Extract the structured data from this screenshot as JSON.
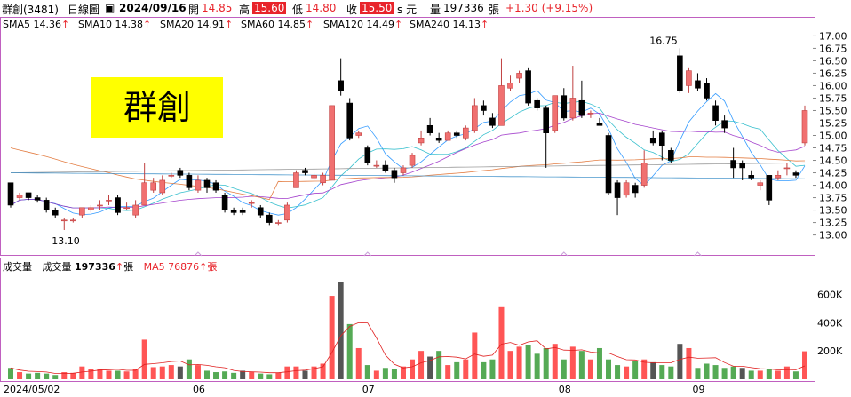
{
  "header": {
    "stock": "群創(3481)",
    "period": "日線圖",
    "date": "2024/09/16",
    "open_label": "開",
    "open": "14.85",
    "high_label": "高",
    "high": "15.60",
    "low_label": "低",
    "low": "14.80",
    "close_label": "收",
    "close": "15.50",
    "close_unit": "s 元",
    "volume_label": "量",
    "volume": "197336",
    "volume_unit": "張",
    "change": "+1.30 (+9.15%)"
  },
  "ma_legend": [
    {
      "text": "SMA5 14.36",
      "arrow": "↑",
      "color": "#1e90ff"
    },
    {
      "text": "SMA10 14.38",
      "arrow": "↑",
      "color": "#20b8c8"
    },
    {
      "text": "SMA20 14.91",
      "arrow": "↑",
      "color": "#9b30c8"
    },
    {
      "text": "SMA60 14.85",
      "arrow": "↑",
      "color": "#e07030"
    },
    {
      "text": "SMA120 14.49",
      "arrow": "↑",
      "color": "#909090"
    },
    {
      "text": "SMA240 14.13",
      "arrow": "↑",
      "color": "#3a8ec8"
    }
  ],
  "stock_name_box": "群創",
  "volume_legend": {
    "title": "成交量",
    "vol_label": "成交量",
    "vol_value": "197336",
    "vol_arrow": "↑",
    "vol_unit": "張",
    "ma5_label": "MA5",
    "ma5_value": "76876",
    "ma5_arrow": "↑",
    "ma5_unit": "張"
  },
  "chart_data": {
    "type": "candlestick",
    "price_axis": {
      "ticks": [
        "17.00",
        "16.75",
        "16.50",
        "16.25",
        "16.00",
        "15.75",
        "15.50",
        "15.25",
        "15.00",
        "14.75",
        "14.50",
        "14.25",
        "14.00",
        "13.75",
        "13.50",
        "13.25",
        "13.00"
      ],
      "ylim": [
        12.85,
        17.15
      ]
    },
    "volume_axis": {
      "ticks": [
        "600K",
        "400K",
        "200K"
      ],
      "ylim": [
        0,
        760000
      ]
    },
    "x_labels": [
      {
        "label": "2024/05/02",
        "index": 0
      },
      {
        "label": "06",
        "index": 21
      },
      {
        "label": "07",
        "index": 40
      },
      {
        "label": "08",
        "index": 62
      },
      {
        "label": "09",
        "index": 77
      }
    ],
    "annotations": [
      {
        "text": "16.75",
        "index": 73,
        "value": 16.75,
        "position": "above"
      },
      {
        "text": "13.10",
        "index": 6,
        "value": 13.1,
        "position": "below"
      }
    ],
    "candles": [
      [
        14.05,
        13.6,
        14.05,
        13.55
      ],
      [
        13.75,
        13.8,
        13.85,
        13.7
      ],
      [
        13.85,
        13.75,
        13.85,
        13.7
      ],
      [
        13.75,
        13.7,
        13.8,
        13.65
      ],
      [
        13.7,
        13.5,
        13.75,
        13.45
      ],
      [
        13.5,
        13.4,
        13.55,
        13.35
      ],
      [
        13.3,
        13.3,
        13.35,
        13.1
      ],
      [
        13.3,
        13.3,
        13.35,
        13.25
      ],
      [
        13.4,
        13.55,
        13.55,
        13.35
      ],
      [
        13.5,
        13.55,
        13.6,
        13.45
      ],
      [
        13.6,
        13.6,
        13.7,
        13.5
      ],
      [
        13.7,
        13.7,
        13.8,
        13.6
      ],
      [
        13.75,
        13.45,
        13.8,
        13.4
      ],
      [
        13.55,
        13.55,
        13.65,
        13.5
      ],
      [
        13.4,
        13.6,
        13.7,
        13.35
      ],
      [
        13.6,
        14.05,
        14.45,
        13.6
      ],
      [
        13.9,
        14.05,
        14.15,
        13.85
      ],
      [
        13.85,
        14.1,
        14.2,
        13.8
      ],
      [
        14.2,
        14.2,
        14.25,
        14.15
      ],
      [
        14.3,
        14.2,
        14.35,
        14.15
      ],
      [
        14.2,
        13.95,
        14.25,
        13.9
      ],
      [
        13.9,
        14.1,
        14.2,
        13.85
      ],
      [
        14.1,
        13.95,
        14.15,
        13.85
      ],
      [
        14.05,
        13.9,
        14.1,
        13.85
      ],
      [
        13.8,
        13.5,
        13.85,
        13.45
      ],
      [
        13.5,
        13.45,
        13.55,
        13.4
      ],
      [
        13.5,
        13.45,
        13.55,
        13.4
      ],
      [
        13.65,
        13.65,
        13.7,
        13.55
      ],
      [
        13.55,
        13.4,
        13.6,
        13.35
      ],
      [
        13.4,
        13.25,
        13.45,
        13.2
      ],
      [
        13.25,
        13.25,
        13.3,
        13.2
      ],
      [
        13.3,
        13.6,
        13.65,
        13.25
      ],
      [
        13.95,
        14.25,
        14.3,
        13.95
      ],
      [
        14.3,
        14.25,
        14.35,
        14.2
      ],
      [
        14.15,
        14.2,
        14.25,
        14.1
      ],
      [
        14.05,
        14.2,
        14.25,
        14.0
      ],
      [
        14.1,
        15.6,
        15.6,
        14.1
      ],
      [
        16.1,
        15.9,
        16.55,
        15.8
      ],
      [
        15.65,
        14.95,
        15.75,
        14.9
      ],
      [
        15.0,
        15.05,
        15.1,
        14.95
      ],
      [
        14.75,
        14.45,
        14.8,
        14.4
      ],
      [
        14.4,
        14.4,
        14.5,
        14.35
      ],
      [
        14.4,
        14.3,
        14.5,
        14.25
      ],
      [
        14.3,
        14.15,
        14.35,
        14.05
      ],
      [
        14.25,
        14.35,
        14.4,
        14.2
      ],
      [
        14.4,
        14.6,
        14.65,
        14.35
      ],
      [
        14.85,
        14.95,
        15.1,
        14.8
      ],
      [
        15.2,
        15.05,
        15.35,
        15.0
      ],
      [
        14.95,
        14.9,
        15.05,
        14.85
      ],
      [
        14.9,
        15.05,
        15.1,
        14.9
      ],
      [
        15.05,
        15.0,
        15.1,
        14.95
      ],
      [
        14.95,
        15.15,
        15.2,
        14.9
      ],
      [
        15.1,
        15.6,
        15.75,
        15.05
      ],
      [
        15.6,
        15.5,
        15.7,
        15.4
      ],
      [
        15.35,
        15.2,
        15.45,
        15.15
      ],
      [
        15.2,
        16.0,
        16.55,
        15.2
      ],
      [
        15.95,
        16.05,
        16.2,
        15.9
      ],
      [
        16.15,
        16.25,
        16.3,
        16.05
      ],
      [
        16.3,
        15.65,
        16.35,
        15.6
      ],
      [
        15.7,
        15.55,
        15.75,
        15.5
      ],
      [
        15.55,
        15.05,
        15.6,
        14.35
      ],
      [
        15.1,
        15.8,
        15.8,
        15.05
      ],
      [
        15.8,
        15.35,
        15.95,
        15.3
      ],
      [
        15.35,
        15.75,
        16.4,
        15.3
      ],
      [
        15.7,
        15.4,
        16.1,
        15.35
      ],
      [
        15.45,
        15.45,
        15.5,
        15.35
      ],
      [
        15.25,
        15.2,
        15.35,
        15.2
      ],
      [
        15.0,
        13.85,
        15.05,
        13.8
      ],
      [
        14.05,
        13.75,
        14.1,
        13.4
      ],
      [
        13.8,
        14.05,
        14.1,
        13.75
      ],
      [
        14.0,
        13.85,
        14.05,
        13.75
      ],
      [
        14.0,
        14.45,
        14.7,
        13.95
      ],
      [
        14.95,
        14.85,
        15.1,
        14.8
      ],
      [
        15.05,
        14.8,
        15.1,
        14.5
      ],
      [
        14.7,
        14.5,
        14.75,
        14.45
      ],
      [
        16.6,
        15.9,
        16.75,
        15.85
      ],
      [
        16.0,
        16.3,
        16.35,
        15.85
      ],
      [
        16.1,
        15.95,
        16.25,
        15.9
      ],
      [
        16.05,
        15.75,
        16.15,
        15.7
      ],
      [
        15.6,
        15.3,
        15.7,
        15.2
      ],
      [
        15.3,
        15.15,
        15.4,
        15.05
      ],
      [
        14.5,
        14.35,
        14.75,
        14.15
      ],
      [
        14.45,
        14.35,
        14.5,
        14.1
      ],
      [
        14.2,
        14.15,
        14.3,
        14.1
      ],
      [
        14.0,
        14.05,
        14.1,
        13.9
      ],
      [
        14.2,
        13.7,
        14.2,
        13.6
      ],
      [
        14.15,
        14.2,
        14.3,
        14.1
      ],
      [
        14.35,
        14.35,
        14.45,
        14.2
      ],
      [
        14.25,
        14.2,
        14.3,
        14.15
      ],
      [
        14.85,
        15.5,
        15.6,
        14.8
      ]
    ],
    "volumes": [
      80000,
      50000,
      40000,
      45000,
      40000,
      30000,
      50000,
      45000,
      90000,
      70000,
      70000,
      60000,
      60000,
      55000,
      70000,
      280000,
      85000,
      90000,
      100000,
      90000,
      140000,
      100000,
      60000,
      50000,
      55000,
      45000,
      60000,
      50000,
      40000,
      35000,
      45000,
      90000,
      90000,
      60000,
      90000,
      110000,
      590000,
      690000,
      390000,
      220000,
      100000,
      60000,
      80000,
      70000,
      90000,
      140000,
      200000,
      160000,
      200000,
      100000,
      120000,
      140000,
      330000,
      120000,
      140000,
      510000,
      200000,
      230000,
      240000,
      180000,
      220000,
      250000,
      140000,
      230000,
      200000,
      140000,
      220000,
      140000,
      100000,
      90000,
      130000,
      140000,
      120000,
      100000,
      90000,
      250000,
      220000,
      80000,
      110000,
      100000,
      80000,
      90000,
      80000,
      60000,
      60000,
      70000,
      60000,
      90000,
      55000,
      197336
    ],
    "ma_series": [
      {
        "name": "SMA5",
        "period": 5,
        "color": "#1e90ff"
      },
      {
        "name": "SMA10",
        "period": 10,
        "color": "#20b8c8"
      },
      {
        "name": "SMA20",
        "period": 20,
        "color": "#9b30c8"
      },
      {
        "name": "SMA60",
        "period": 60,
        "color": "#e07030",
        "seed": [
          14.75,
          13.95
        ]
      },
      {
        "name": "SMA120",
        "period": 120,
        "color": "#909090",
        "seed": [
          14.25,
          14.45
        ]
      },
      {
        "name": "SMA240",
        "period": 240,
        "color": "#3a8ec8",
        "seed": [
          14.25,
          14.13
        ]
      }
    ],
    "volume_ma": {
      "name": "MA5",
      "period": 5,
      "color": "#e02020"
    },
    "up_color": "#f07070",
    "down_color": "#000000",
    "vol_up_color": "#ff5555",
    "vol_down_color": "#55aa55"
  }
}
